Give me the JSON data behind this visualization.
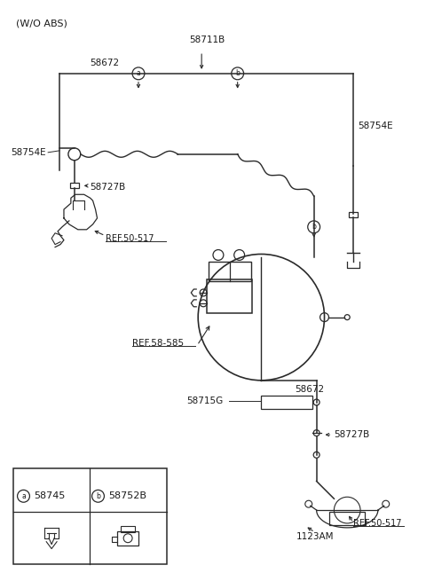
{
  "background_color": "#ffffff",
  "line_color": "#2a2a2a",
  "text_color": "#1a1a1a",
  "labels": {
    "wo_abs": "(W/O ABS)",
    "58711B": "58711B",
    "58672_top": "58672",
    "58754E_left": "58754E",
    "58754E_right": "58754E",
    "58727B_top": "58727B",
    "REF_50_517_top": "REF.50-517",
    "REF_58_585": "REF.58-585",
    "58715G": "58715G",
    "58672_mid": "58672",
    "58727B_bot": "58727B",
    "REF_50_517_bot": "REF.50-517",
    "1123AM": "1123AM",
    "58745": "58745",
    "58752B": "58752B"
  },
  "figsize": [
    4.8,
    6.55
  ],
  "dpi": 100
}
